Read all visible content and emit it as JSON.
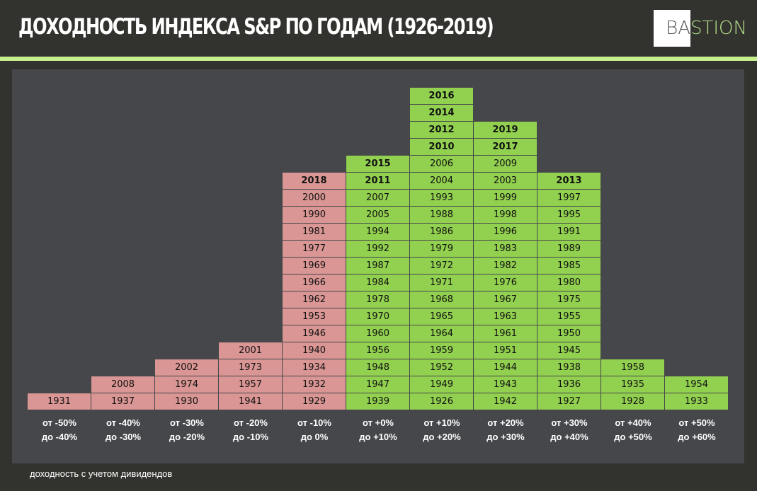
{
  "header": {
    "title": "ДОХОДНОСТЬ  ИНДЕКСА S&P ПО ГОДАМ (1926-2019)",
    "logo_text": "BASTION",
    "logo_part1": "BA",
    "logo_part2": "STION"
  },
  "footer_note": "доходность с учетом дивидендов",
  "colors": {
    "negative": "#d99694",
    "positive": "#92d050",
    "background": "#46474b",
    "accent": "#c6f08e"
  },
  "chart_data": {
    "type": "table",
    "title": "ДОХОДНОСТЬ  ИНДЕКСА S&P ПО ГОДАМ (1926-2019)",
    "note": "доходность с учетом дивидендов",
    "bold_years_from": 2010,
    "bins": [
      {
        "label1": "от -50%",
        "label2": "до -40%",
        "sign": "negative",
        "years": [
          1931
        ]
      },
      {
        "label1": "от -40%",
        "label2": "до -30%",
        "sign": "negative",
        "years": [
          1937,
          2008
        ]
      },
      {
        "label1": "от -30%",
        "label2": "до -20%",
        "sign": "negative",
        "years": [
          1930,
          1974,
          2002
        ]
      },
      {
        "label1": "от -20%",
        "label2": "до -10%",
        "sign": "negative",
        "years": [
          1941,
          1957,
          1973,
          2001
        ]
      },
      {
        "label1": "от -10%",
        "label2": "до 0%",
        "sign": "negative",
        "years": [
          1929,
          1932,
          1934,
          1940,
          1946,
          1953,
          1962,
          1966,
          1969,
          1977,
          1981,
          1990,
          2000,
          2018
        ]
      },
      {
        "label1": "от +0%",
        "label2": "до +10%",
        "sign": "positive",
        "years": [
          1939,
          1947,
          1948,
          1956,
          1960,
          1970,
          1978,
          1984,
          1987,
          1992,
          1994,
          2005,
          2007,
          2011,
          2015
        ]
      },
      {
        "label1": "от +10%",
        "label2": "до +20%",
        "sign": "positive",
        "years": [
          1926,
          1949,
          1952,
          1959,
          1964,
          1965,
          1968,
          1971,
          1972,
          1979,
          1986,
          1988,
          1993,
          2004,
          2006,
          2010,
          2012,
          2014,
          2016
        ]
      },
      {
        "label1": "от +20%",
        "label2": "до +30%",
        "sign": "positive",
        "years": [
          1942,
          1943,
          1944,
          1951,
          1961,
          1963,
          1967,
          1976,
          1982,
          1983,
          1996,
          1998,
          1999,
          2003,
          2009,
          2017,
          2019
        ]
      },
      {
        "label1": "от +30%",
        "label2": "до +40%",
        "sign": "positive",
        "years": [
          1927,
          1936,
          1938,
          1945,
          1950,
          1955,
          1975,
          1980,
          1985,
          1989,
          1991,
          1995,
          1997,
          2013
        ]
      },
      {
        "label1": "от +40%",
        "label2": "до +50%",
        "sign": "positive",
        "years": [
          1928,
          1935,
          1958
        ]
      },
      {
        "label1": "от +50%",
        "label2": "до +60%",
        "sign": "positive",
        "years": [
          1933,
          1954
        ]
      }
    ]
  }
}
